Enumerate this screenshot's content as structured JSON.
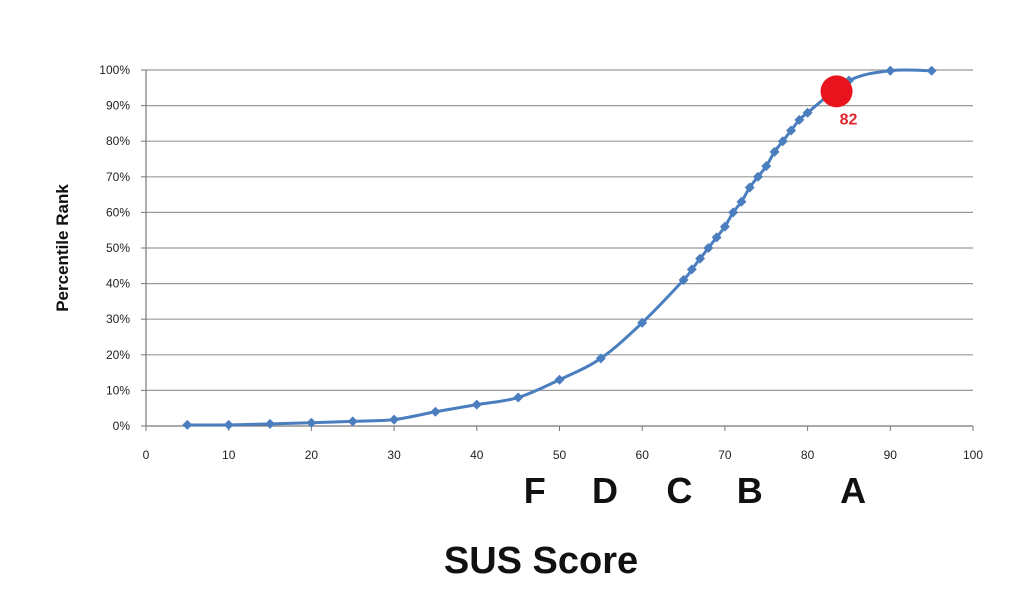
{
  "chart_data": {
    "type": "line",
    "xlabel": "SUS Score",
    "ylabel": "Percentile Rank",
    "xlim": [
      0,
      100
    ],
    "ylim": [
      0,
      100
    ],
    "x_ticks": [
      "0",
      "10",
      "20",
      "30",
      "40",
      "50",
      "60",
      "70",
      "80",
      "90",
      "100"
    ],
    "y_ticks": [
      "0%",
      "10%",
      "20%",
      "30%",
      "40%",
      "50%",
      "60%",
      "70%",
      "80%",
      "90%",
      "100%"
    ],
    "grid": "horizontal",
    "series": [
      {
        "color": "#4a7ebf",
        "marker": "diamond",
        "x": [
          5,
          10,
          15,
          20,
          25,
          30,
          35,
          40,
          45,
          50,
          55,
          60,
          65,
          66,
          67,
          68,
          69,
          70,
          71,
          72,
          73,
          74,
          75,
          76,
          77,
          78,
          79,
          80,
          85,
          90,
          95
        ],
        "y": [
          0.3,
          0.3,
          0.6,
          0.9,
          1.3,
          1.8,
          4,
          6,
          8,
          13,
          19,
          29,
          41,
          44,
          47,
          50,
          53,
          56,
          60,
          63,
          67,
          70,
          73,
          77,
          80,
          83,
          86,
          88,
          97,
          99.8,
          99.8
        ]
      }
    ],
    "grades": [
      {
        "label": "F",
        "x": 47
      },
      {
        "label": "D",
        "x": 55.5
      },
      {
        "label": "C",
        "x": 64.5
      },
      {
        "label": "B",
        "x": 73
      },
      {
        "label": "A",
        "x": 85.5
      }
    ],
    "highlight": {
      "label": "82",
      "x": 83.5,
      "y": 94,
      "color": "#e8131c"
    }
  }
}
